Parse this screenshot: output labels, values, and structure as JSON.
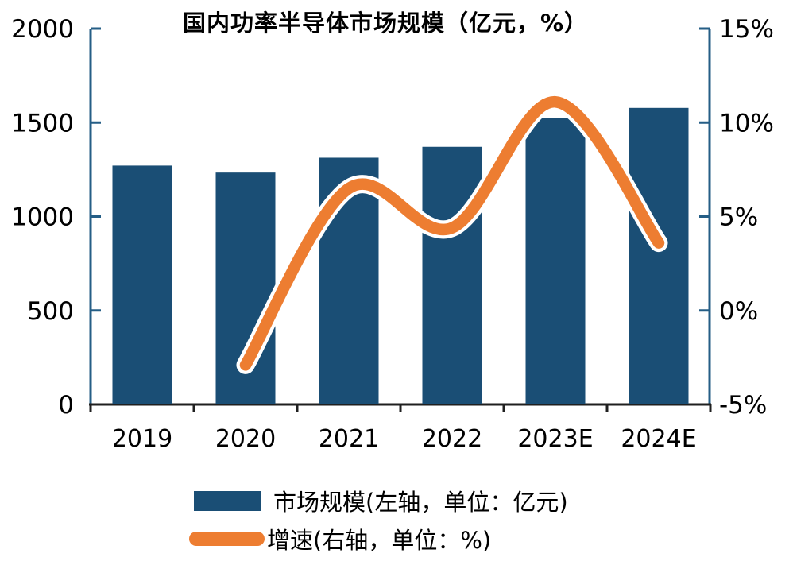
{
  "chart": {
    "title": "国内功率半导体市场规模（亿元，%）",
    "legend": [
      {
        "label": "市场规模(左轴，单位：亿元)",
        "swatch": "bar-swatch"
      },
      {
        "label": "增速(右轴，单位：%)",
        "swatch": "line-swatch"
      }
    ]
  },
  "chart_data": {
    "type": "bar",
    "title": "国内功率半导体市场规模（亿元，%）",
    "categories": [
      "2019",
      "2020",
      "2021",
      "2022",
      "2023E",
      "2024E"
    ],
    "series": [
      {
        "name": "市场规模(左轴，单位：亿元)",
        "type": "bar",
        "axis": "left",
        "values": [
          1271,
          1234,
          1313,
          1371,
          1523,
          1578
        ],
        "color": "#1A4E75"
      },
      {
        "name": "增速(右轴，单位：%)",
        "type": "line",
        "axis": "right",
        "values": [
          null,
          -2.9,
          6.5,
          4.4,
          11.1,
          3.6
        ],
        "color": "#ED7D31",
        "outline_color": "#FFFFFF",
        "smooth": true
      }
    ],
    "left_axis": {
      "min": 0,
      "max": 2000,
      "tick_labels_top_to_bottom": [
        "2000",
        "1500",
        "1000",
        "500",
        "0"
      ]
    },
    "right_axis": {
      "min": -5,
      "max": 15,
      "tick_labels_top_to_bottom": [
        "15%",
        "10%",
        "5%",
        "0%",
        "-5%"
      ]
    },
    "grid": false,
    "legend_position": "bottom",
    "colors": {
      "axis_line": "#255E86",
      "baseline": "#1F1F1F",
      "text": "#000000"
    }
  }
}
